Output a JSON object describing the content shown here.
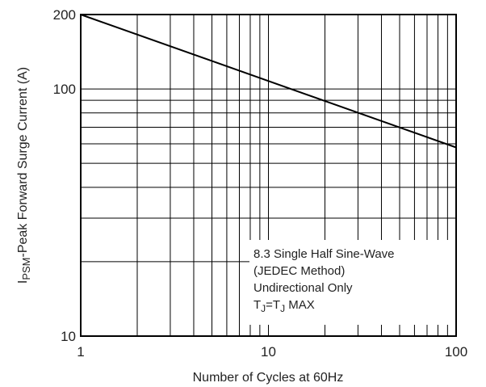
{
  "chart_data": {
    "type": "line",
    "xscale": "log",
    "yscale": "log",
    "xlim": [
      1,
      100
    ],
    "ylim": [
      10,
      200
    ],
    "xlabel": "Number of Cycles at 60Hz",
    "ylabel": {
      "main": "I",
      "sub": "PSM",
      "rest": "-Peak Forward Surge Current (A)"
    },
    "x_ticks": [
      {
        "value": 1,
        "label": "1"
      },
      {
        "value": 10,
        "label": "10"
      },
      {
        "value": 100,
        "label": "100"
      }
    ],
    "y_ticks": [
      {
        "value": 10,
        "label": "10"
      },
      {
        "value": 100,
        "label": "100"
      },
      {
        "value": 200,
        "label": "200"
      }
    ],
    "grid": true,
    "series": [
      {
        "x": [
          1,
          100
        ],
        "y": [
          200,
          58
        ]
      }
    ],
    "annotation": {
      "line1": "8.3 Single Half Sine-Wave",
      "line2": "(JEDEC Method)",
      "line3": "Undirectional Only",
      "line4": {
        "t1": "T",
        "s1": "J",
        "mid": "=T",
        "s2": "J",
        "end": " MAX"
      }
    },
    "colors": {
      "line": "#000000",
      "grid": "#000000",
      "text": "#222222"
    }
  }
}
